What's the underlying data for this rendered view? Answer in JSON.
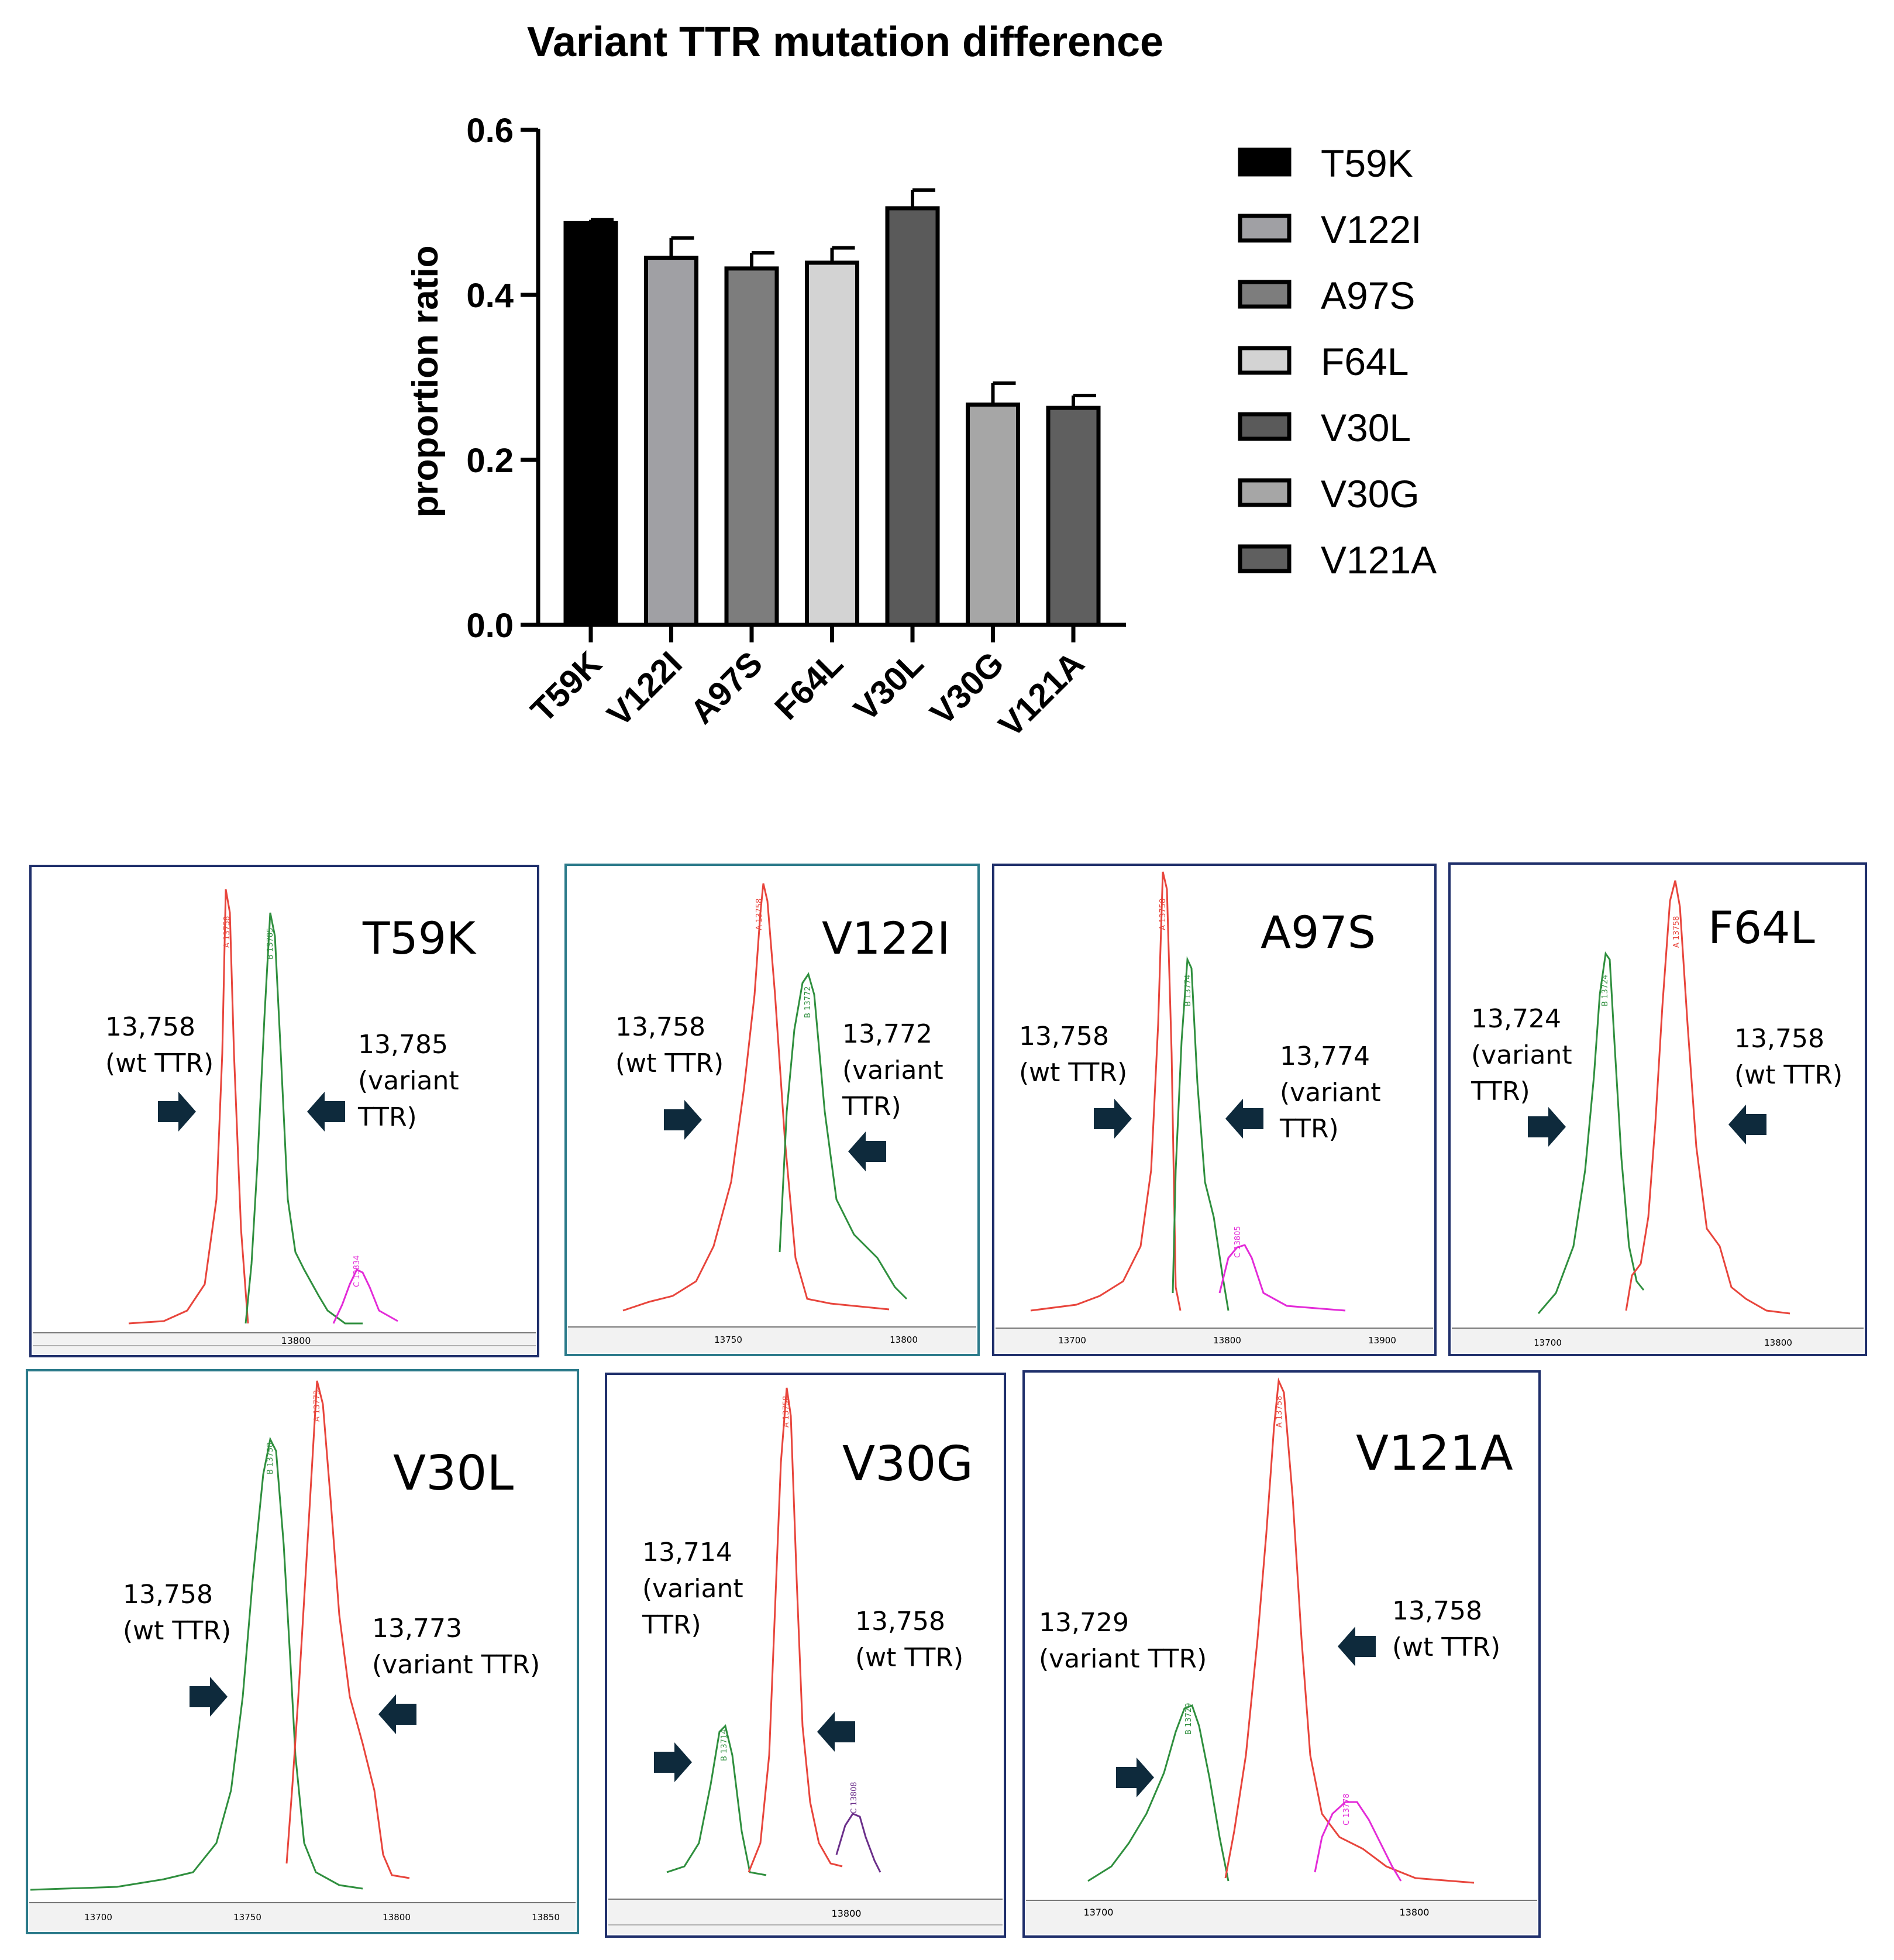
{
  "chart_data": [
    {
      "type": "bar",
      "title": "Variant TTR mutation difference",
      "xlabel": "",
      "ylabel": "proportion ratio",
      "ylim": [
        0,
        0.6
      ],
      "yticks": [
        "0.0",
        "0.2",
        "0.4",
        "0.6"
      ],
      "categories": [
        "T59K",
        "V122I",
        "A97S",
        "F64L",
        "V30L",
        "V30G",
        "V121A"
      ],
      "values": [
        0.487,
        0.445,
        0.432,
        0.439,
        0.505,
        0.267,
        0.263
      ],
      "errors": [
        0.004,
        0.024,
        0.019,
        0.018,
        0.022,
        0.026,
        0.015
      ],
      "colors": [
        "#000000",
        "#a0a0a4",
        "#7d7d7d",
        "#d3d3d3",
        "#5a5a5a",
        "#a6a6a6",
        "#5f5f5f"
      ],
      "legend": {
        "position": "right",
        "entries": [
          "T59K",
          "V122I",
          "A97S",
          "F64L",
          "V30L",
          "V30G",
          "V121A"
        ]
      },
      "grid": false
    },
    {
      "type": "line",
      "panels": [
        {
          "title": "T59K",
          "axis_label": "13800",
          "annotations": [
            {
              "mass": "13,758",
              "desc": "(wt TTR)"
            },
            {
              "mass": "13,785",
              "desc": "(variant TTR)"
            }
          ],
          "peak_labels": [
            "A 13758",
            "B 13785",
            "C 13834"
          ]
        },
        {
          "title": "V122I",
          "axis_labels": [
            "13750",
            "13800"
          ],
          "annotations": [
            {
              "mass": "13,758",
              "desc": "(wt TTR)"
            },
            {
              "mass": "13,772",
              "desc": "(variant TTR)"
            }
          ],
          "peak_labels": [
            "A 13758",
            "B 13772"
          ]
        },
        {
          "title": "A97S",
          "axis_labels": [
            "13700",
            "13800",
            "13900"
          ],
          "annotations": [
            {
              "mass": "13,758",
              "desc": "(wt TTR)"
            },
            {
              "mass": "13,774",
              "desc": "(variant TTR)"
            }
          ],
          "peak_labels": [
            "A 13758",
            "B 13774",
            "C 13805"
          ]
        },
        {
          "title": "F64L",
          "axis_labels": [
            "13700",
            "13800"
          ],
          "annotations": [
            {
              "mass": "13,724",
              "desc": "(variant TTR)"
            },
            {
              "mass": "13,758",
              "desc": "(wt TTR)"
            }
          ],
          "peak_labels": [
            "B 13724",
            "A 13758"
          ]
        },
        {
          "title": "V30L",
          "axis_labels": [
            "13700",
            "13750",
            "13800",
            "13850"
          ],
          "annotations": [
            {
              "mass": "13,758",
              "desc": "(wt TTR)"
            },
            {
              "mass": "13,773",
              "desc": "(variant TTR)"
            }
          ],
          "peak_labels": [
            "B 13758",
            "A 13773"
          ]
        },
        {
          "title": "V30G",
          "axis_label": "13800",
          "annotations": [
            {
              "mass": "13,714",
              "desc": "(variant TTR)"
            },
            {
              "mass": "13,758",
              "desc": "(wt TTR)"
            }
          ],
          "peak_labels": [
            "B 13714",
            "A 13758",
            "C 13808"
          ]
        },
        {
          "title": "V121A",
          "axis_labels": [
            "13700",
            "13800"
          ],
          "annotations": [
            {
              "mass": "13,729",
              "desc": "(variant TTR)"
            },
            {
              "mass": "13,758",
              "desc": "(wt TTR)"
            }
          ],
          "peak_labels": [
            "B 13729",
            "A 13758",
            "C 13778"
          ]
        }
      ]
    }
  ]
}
